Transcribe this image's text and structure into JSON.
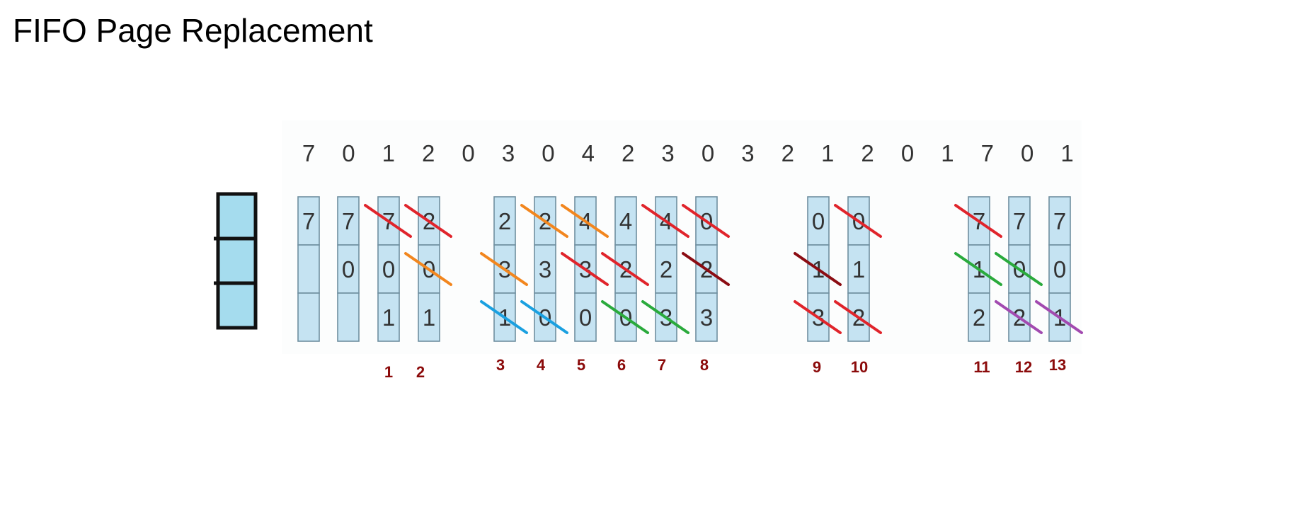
{
  "title": "FIFO Page Replacement",
  "reference_string": [
    "7",
    "0",
    "1",
    "2",
    "0",
    "3",
    "0",
    "4",
    "2",
    "3",
    "0",
    "3",
    "2",
    "1",
    "2",
    "0",
    "1",
    "7",
    "0",
    "1"
  ],
  "frames": [
    {
      "cells": [
        "7",
        "",
        ""
      ],
      "marks": []
    },
    {
      "cells": [
        "7",
        "0",
        ""
      ],
      "marks": []
    },
    {
      "cells": [
        "7",
        "0",
        "1"
      ],
      "marks": [
        {
          "row": 0,
          "color": "red"
        }
      ]
    },
    {
      "cells": [
        "2",
        "0",
        "1"
      ],
      "marks": [
        {
          "row": 0,
          "color": "red"
        },
        {
          "row": 1,
          "color": "orange"
        }
      ]
    },
    {
      "cells": [
        "2",
        "3",
        "1"
      ],
      "marks": [
        {
          "row": 1,
          "color": "orange"
        },
        {
          "row": 2,
          "color": "blue"
        }
      ]
    },
    {
      "cells": [
        "2",
        "3",
        "0"
      ],
      "marks": [
        {
          "row": 0,
          "color": "orange"
        },
        {
          "row": 2,
          "color": "blue"
        }
      ]
    },
    {
      "cells": [
        "4",
        "3",
        "0"
      ],
      "marks": [
        {
          "row": 0,
          "color": "orange"
        },
        {
          "row": 1,
          "color": "red"
        }
      ]
    },
    {
      "cells": [
        "4",
        "2",
        "0"
      ],
      "marks": [
        {
          "row": 1,
          "color": "red"
        },
        {
          "row": 2,
          "color": "green"
        }
      ]
    },
    {
      "cells": [
        "4",
        "2",
        "3"
      ],
      "marks": [
        {
          "row": 0,
          "color": "red"
        },
        {
          "row": 2,
          "color": "green"
        }
      ]
    },
    {
      "cells": [
        "0",
        "2",
        "3"
      ],
      "marks": [
        {
          "row": 0,
          "color": "red"
        },
        {
          "row": 1,
          "color": "darkred"
        }
      ]
    },
    {
      "cells": [
        "0",
        "1",
        "3"
      ],
      "marks": [
        {
          "row": 1,
          "color": "darkred"
        },
        {
          "row": 2,
          "color": "red"
        }
      ]
    },
    {
      "cells": [
        "0",
        "1",
        "2"
      ],
      "marks": [
        {
          "row": 0,
          "color": "red"
        },
        {
          "row": 2,
          "color": "red"
        }
      ]
    },
    {
      "cells": [
        "7",
        "1",
        "2"
      ],
      "marks": [
        {
          "row": 0,
          "color": "red"
        },
        {
          "row": 1,
          "color": "green"
        }
      ]
    },
    {
      "cells": [
        "7",
        "0",
        "2"
      ],
      "marks": [
        {
          "row": 1,
          "color": "green"
        },
        {
          "row": 2,
          "color": "purple"
        }
      ]
    },
    {
      "cells": [
        "7",
        "0",
        "1"
      ],
      "marks": [
        {
          "row": 2,
          "color": "purple"
        }
      ]
    }
  ],
  "step_labels": [
    "1",
    "2",
    "3",
    "4",
    "5",
    "6",
    "7",
    "8",
    "9",
    "10",
    "11",
    "12",
    "13"
  ],
  "colors": {
    "cell_fill": "#c5e3f2",
    "cell_stroke": "#6f8fa0",
    "legend_fill": "#a5dcee",
    "legend_stroke": "#111111",
    "red": "#e0242b",
    "orange": "#f2861e",
    "blue": "#1aa0e0",
    "green": "#2aaa3c",
    "darkred": "#8b0c12",
    "purple": "#a24ab0"
  }
}
